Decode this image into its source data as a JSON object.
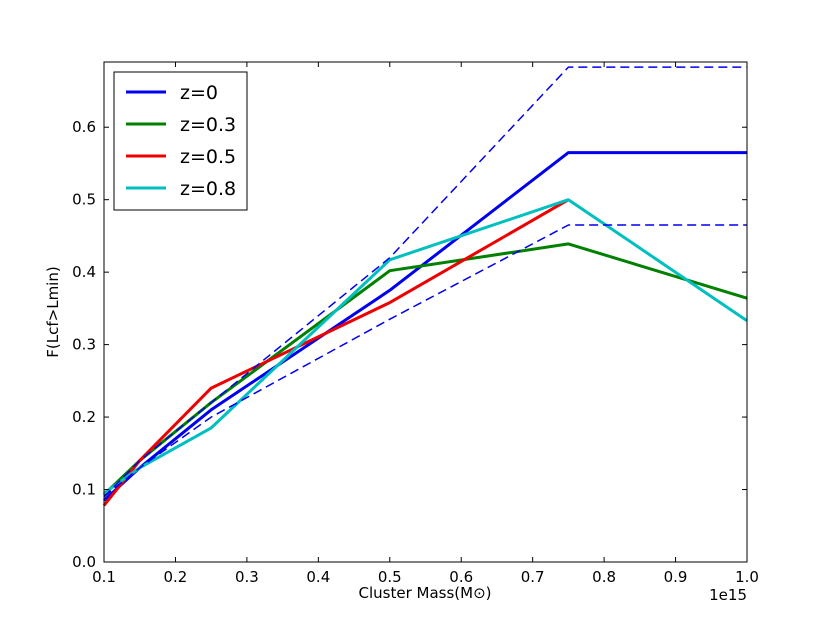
{
  "chart_data": {
    "type": "line",
    "title": "",
    "xlabel": "Cluster Mass(M⊙)",
    "ylabel": "F(Lcf>Lmin)",
    "x_offset_label": "1e15",
    "xlim": [
      0.1,
      1.0
    ],
    "ylim": [
      0.0,
      0.69
    ],
    "xticks": [
      0.1,
      0.2,
      0.3,
      0.4,
      0.5,
      0.6,
      0.7,
      0.8,
      0.9,
      1.0
    ],
    "xtick_labels": [
      "0.1",
      "0.2",
      "0.3",
      "0.4",
      "0.5",
      "0.6",
      "0.7",
      "0.8",
      "0.9",
      "1.0"
    ],
    "yticks": [
      0.0,
      0.1,
      0.2,
      0.3,
      0.4,
      0.5,
      0.6
    ],
    "ytick_labels": [
      "0.0",
      "0.1",
      "0.2",
      "0.3",
      "0.4",
      "0.5",
      "0.6"
    ],
    "grid": false,
    "legend_position": "top-left",
    "series": [
      {
        "name": "z=0",
        "color": "#0000ee",
        "style": "solid",
        "in_legend": true,
        "x": [
          0.1,
          0.15,
          0.25,
          0.5,
          0.75,
          1.0
        ],
        "y": [
          0.085,
          0.13,
          0.21,
          0.375,
          0.565,
          0.565
        ]
      },
      {
        "name": "z=0.3",
        "color": "#008000",
        "style": "solid",
        "in_legend": true,
        "x": [
          0.1,
          0.15,
          0.25,
          0.5,
          0.75,
          1.0
        ],
        "y": [
          0.093,
          0.14,
          0.22,
          0.402,
          0.439,
          0.364
        ]
      },
      {
        "name": "z=0.5",
        "color": "#ee0000",
        "style": "solid",
        "in_legend": true,
        "x": [
          0.1,
          0.15,
          0.25,
          0.5,
          0.75
        ],
        "y": [
          0.078,
          0.14,
          0.24,
          0.358,
          0.5
        ]
      },
      {
        "name": "z=0.8",
        "color": "#00bfbf",
        "style": "solid",
        "in_legend": true,
        "x": [
          0.1,
          0.15,
          0.25,
          0.5,
          0.75,
          1.0
        ],
        "y": [
          0.095,
          0.13,
          0.185,
          0.417,
          0.5,
          0.333
        ]
      },
      {
        "name": "z=0 upper bound",
        "color": "#0000ee",
        "style": "dashed",
        "in_legend": false,
        "x": [
          0.1,
          0.15,
          0.25,
          0.5,
          0.75,
          1.0
        ],
        "y": [
          0.09,
          0.14,
          0.22,
          0.42,
          0.683,
          0.683
        ]
      },
      {
        "name": "z=0 lower bound",
        "color": "#0000ee",
        "style": "dashed",
        "in_legend": false,
        "x": [
          0.1,
          0.15,
          0.25,
          0.5,
          0.75,
          1.0
        ],
        "y": [
          0.09,
          0.13,
          0.2,
          0.335,
          0.465,
          0.465
        ]
      }
    ]
  }
}
